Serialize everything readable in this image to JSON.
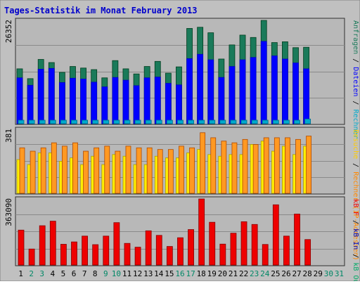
{
  "title": "Tages-Statistik im Monat February 2013",
  "colors": {
    "background": "#c0c0c0",
    "panel": "#b8b8b8",
    "title": "#0000cc",
    "anfragen": "#1a7a5a",
    "dateien": "#0000ff",
    "rechner": "#00aacc",
    "besuche": "#ffee00",
    "rechner_orange": "#ff9922",
    "kb_f": "#ee0000",
    "kb_in": "#0000aa",
    "kb_out": "#00aa66",
    "weekend_day": "#008866",
    "weekday": "#000000"
  },
  "legend": {
    "panel1": [
      {
        "text": "Anfragen",
        "color": "#1a7a5a"
      },
      {
        "text": " / ",
        "color": "#000000"
      },
      {
        "text": "Dateien",
        "color": "#0000ff"
      },
      {
        "text": " / ",
        "color": "#000000"
      },
      {
        "text": "Rechner",
        "color": "#00aacc"
      }
    ],
    "panel2": [
      {
        "text": "Besuche",
        "color": "#ffcc00"
      },
      {
        "text": " / ",
        "color": "#000000"
      },
      {
        "text": "Rechner (IP-Adressen)",
        "color": "#ff8800"
      }
    ],
    "panel3": [
      {
        "text": "kB F",
        "color": "#ee0000"
      },
      {
        "text": " / ",
        "color": "#000000"
      },
      {
        "text": "kB In",
        "color": "#0000aa"
      },
      {
        "text": " / ",
        "color": "#000000"
      },
      {
        "text": "kB Out",
        "color": "#00aa66"
      }
    ]
  },
  "chart_data": [
    {
      "type": "bar",
      "ymax_label": "26352",
      "ylim": [
        0,
        26352
      ],
      "categories": [
        "1",
        "2",
        "3",
        "4",
        "5",
        "6",
        "7",
        "8",
        "9",
        "10",
        "11",
        "12",
        "13",
        "14",
        "15",
        "16",
        "17",
        "18",
        "19",
        "20",
        "21",
        "22",
        "23",
        "24",
        "25",
        "26",
        "27",
        "28",
        "29",
        "30",
        "31"
      ],
      "series": [
        {
          "name": "Anfragen",
          "values": [
            14000,
            11500,
            16400,
            15600,
            13100,
            14600,
            14200,
            13800,
            11700,
            16100,
            14000,
            12700,
            14600,
            15900,
            12900,
            14500,
            24300,
            24600,
            23200,
            16500,
            20100,
            22600,
            22000,
            26352,
            20700,
            20900,
            19400,
            19500,
            0,
            0,
            0
          ]
        },
        {
          "name": "Dateien",
          "values": [
            11700,
            9800,
            13900,
            14100,
            10500,
            11600,
            11400,
            10600,
            9400,
            11800,
            11100,
            9700,
            11700,
            11900,
            10300,
            9900,
            16600,
            17700,
            16300,
            11800,
            14600,
            16300,
            16900,
            21000,
            17300,
            16500,
            15500,
            14000,
            0,
            0,
            0
          ]
        },
        {
          "name": "Rechner",
          "values": [
            900,
            900,
            900,
            900,
            900,
            900,
            900,
            900,
            900,
            900,
            900,
            900,
            900,
            900,
            900,
            900,
            900,
            900,
            900,
            900,
            900,
            900,
            900,
            900,
            900,
            900,
            900,
            1200,
            0,
            0,
            0
          ]
        }
      ]
    },
    {
      "type": "bar",
      "ymax_label": "381",
      "ylim": [
        0,
        381
      ],
      "categories": [
        "1",
        "2",
        "3",
        "4",
        "5",
        "6",
        "7",
        "8",
        "9",
        "10",
        "11",
        "12",
        "13",
        "14",
        "15",
        "16",
        "17",
        "18",
        "19",
        "20",
        "21",
        "22",
        "23",
        "24",
        "25",
        "26",
        "27",
        "28",
        "29",
        "30",
        "31"
      ],
      "series": [
        {
          "name": "Besuche",
          "values": [
            201,
            171,
            241,
            241,
            191,
            211,
            171,
            221,
            171,
            231,
            221,
            171,
            171,
            221,
            211,
            211,
            241,
            261,
            231,
            221,
            231,
            231,
            291,
            311,
            251,
            281,
            231,
            281,
            0,
            0,
            0
          ]
        },
        {
          "name": "Rechner (IP-Adressen)",
          "values": [
            271,
            251,
            271,
            301,
            281,
            301,
            251,
            271,
            281,
            251,
            281,
            271,
            271,
            261,
            261,
            281,
            271,
            361,
            331,
            311,
            301,
            321,
            291,
            331,
            331,
            331,
            321,
            341,
            0,
            0,
            0
          ]
        }
      ]
    },
    {
      "type": "bar",
      "ymax_label": "363090",
      "ylim": [
        0,
        363090
      ],
      "categories": [
        "1",
        "2",
        "3",
        "4",
        "5",
        "6",
        "7",
        "8",
        "9",
        "10",
        "11",
        "12",
        "13",
        "14",
        "15",
        "16",
        "17",
        "18",
        "19",
        "20",
        "21",
        "22",
        "23",
        "24",
        "25",
        "26",
        "27",
        "28",
        "29",
        "30",
        "31"
      ],
      "series": [
        {
          "name": "kB F",
          "values": [
            192000,
            88000,
            216000,
            241000,
            114000,
            127000,
            159000,
            112000,
            159000,
            233000,
            119000,
            98000,
            188000,
            163000,
            102000,
            150000,
            195000,
            363090,
            235000,
            115000,
            175000,
            238000,
            223000,
            113000,
            331000,
            159000,
            280000,
            140000,
            0,
            0,
            0
          ]
        }
      ]
    }
  ],
  "days": [
    {
      "label": "1",
      "weekend": false
    },
    {
      "label": "2",
      "weekend": true
    },
    {
      "label": "3",
      "weekend": true
    },
    {
      "label": "4",
      "weekend": false
    },
    {
      "label": "5",
      "weekend": false
    },
    {
      "label": "6",
      "weekend": false
    },
    {
      "label": "7",
      "weekend": false
    },
    {
      "label": "8",
      "weekend": false
    },
    {
      "label": "9",
      "weekend": true
    },
    {
      "label": "10",
      "weekend": true
    },
    {
      "label": "11",
      "weekend": false
    },
    {
      "label": "12",
      "weekend": false
    },
    {
      "label": "13",
      "weekend": false
    },
    {
      "label": "14",
      "weekend": false
    },
    {
      "label": "15",
      "weekend": false
    },
    {
      "label": "16",
      "weekend": true
    },
    {
      "label": "17",
      "weekend": true
    },
    {
      "label": "18",
      "weekend": false
    },
    {
      "label": "19",
      "weekend": false
    },
    {
      "label": "20",
      "weekend": false
    },
    {
      "label": "21",
      "weekend": false
    },
    {
      "label": "22",
      "weekend": false
    },
    {
      "label": "23",
      "weekend": true
    },
    {
      "label": "24",
      "weekend": true
    },
    {
      "label": "25",
      "weekend": false
    },
    {
      "label": "26",
      "weekend": false
    },
    {
      "label": "27",
      "weekend": false
    },
    {
      "label": "28",
      "weekend": false
    },
    {
      "label": "29",
      "weekend": false
    },
    {
      "label": "30",
      "weekend": true
    },
    {
      "label": "31",
      "weekend": true
    }
  ]
}
